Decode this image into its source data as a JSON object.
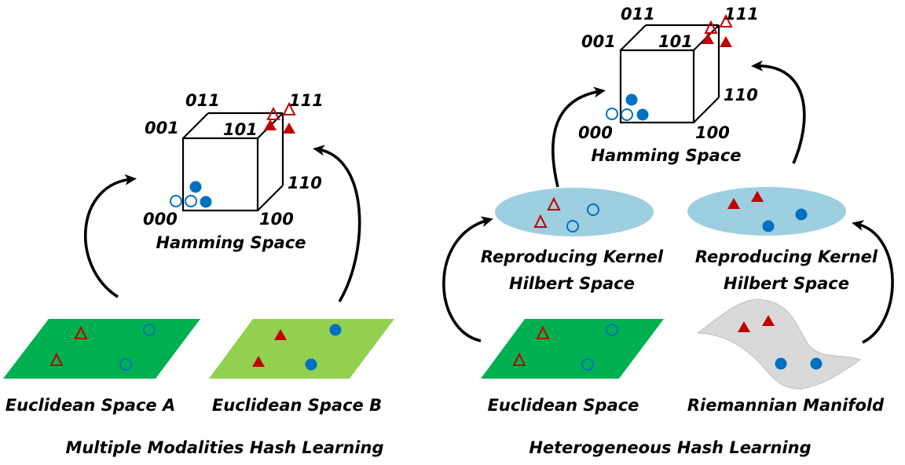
{
  "colors": {
    "euclidean_dark": "#00b050",
    "euclidean_light": "#92d050",
    "ellipse": "#9dcfe0",
    "manifold": "#d9d9d9",
    "circle_blue": "#0070c0",
    "triangle_red": "#c00000"
  },
  "left_panel": {
    "cube": {
      "vertex_labels": {
        "v000": "000",
        "v001": "001",
        "v011": "011",
        "v101": "101",
        "v111": "111",
        "v110": "110",
        "v100": "100"
      },
      "caption": "Hamming Space"
    },
    "space_a_label": "Euclidean Space A",
    "space_b_label": "Euclidean Space B",
    "title": "Multiple Modalities Hash Learning"
  },
  "right_panel": {
    "cube": {
      "vertex_labels": {
        "v000": "000",
        "v001": "001",
        "v011": "011",
        "v101": "101",
        "v111": "111",
        "v110": "110",
        "v100": "100"
      },
      "caption": "Hamming Space"
    },
    "rkhs_left": {
      "line1": "Reproducing Kernel",
      "line2": "Hilbert Space"
    },
    "rkhs_right": {
      "line1": "Reproducing Kernel",
      "line2": "Hilbert Space"
    },
    "euclidean_label": "Euclidean Space",
    "manifold_label": "Riemannian Manifold",
    "title": "Heterogeneous Hash Learning"
  },
  "icons": {
    "hollow_circle": "hollow-circle-marker",
    "filled_circle": "filled-circle-marker",
    "hollow_triangle": "hollow-triangle-marker",
    "filled_triangle": "filled-triangle-marker",
    "curved_arrow": "curved-arrow-icon"
  }
}
